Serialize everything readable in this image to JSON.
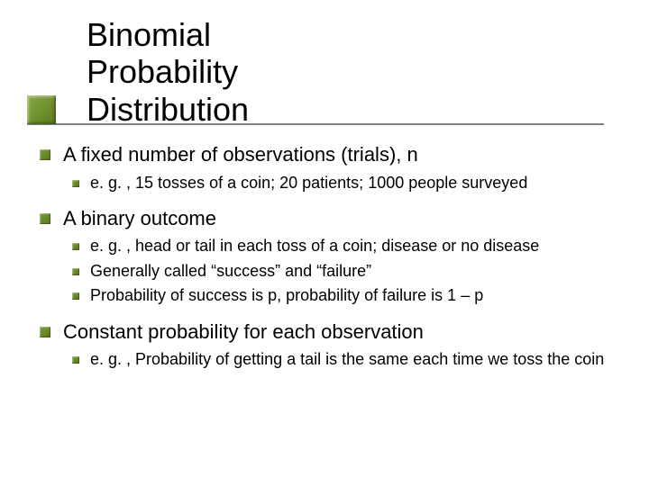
{
  "slide": {
    "title_line1": "Binomial Probability",
    "title_line2": "Distribution",
    "title_fontsize": 36,
    "title_color": "#000000",
    "accent_color": "#6a8a2a",
    "underline_color": "#808080",
    "background_color": "#ffffff"
  },
  "bullets": [
    {
      "text": "A fixed number of observations (trials), n",
      "sub": [
        {
          "text": "e. g. , 15 tosses of a coin; 20 patients; 1000 people surveyed"
        }
      ]
    },
    {
      "text": "A binary outcome",
      "sub": [
        {
          "text": "e. g. , head or tail in each toss of a coin; disease or no disease"
        },
        {
          "text": "Generally called “success” and “failure”"
        },
        {
          "text": "Probability of success is p, probability of failure is 1 – p"
        }
      ]
    },
    {
      "text": "Constant probability for each observation",
      "sub": [
        {
          "text": "e. g. , Probability of getting a tail is the same each time we toss the coin"
        }
      ]
    }
  ],
  "style": {
    "l1_fontsize": 22,
    "l2_fontsize": 18,
    "bullet_color": "#6a8a2a",
    "text_color": "#000000",
    "font_family": "Verdana"
  }
}
